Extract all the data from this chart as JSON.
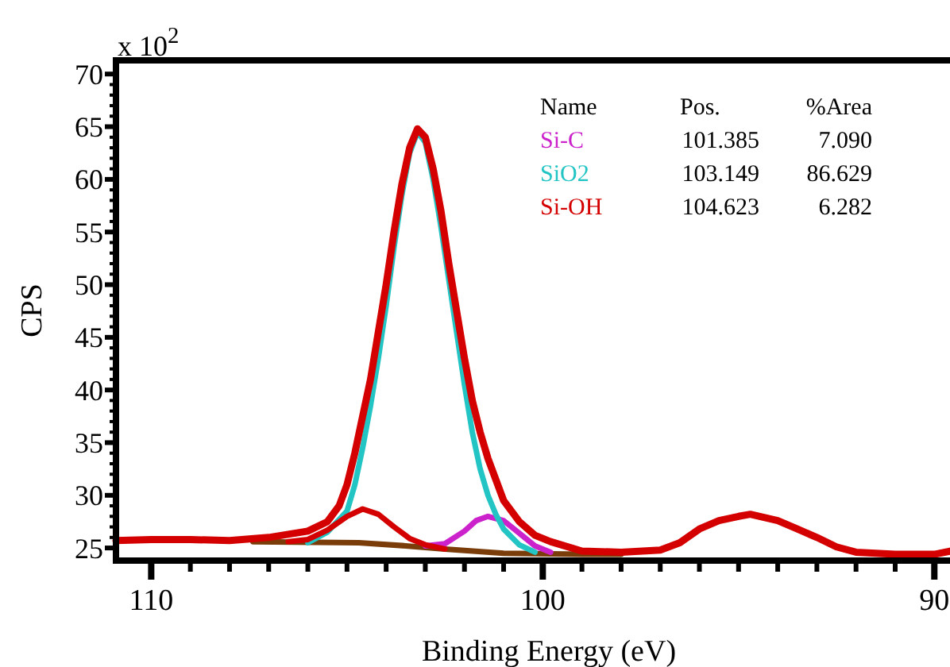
{
  "chart_data": {
    "type": "line",
    "xlabel": "Binding Energy (eV)",
    "ylabel": "CPS",
    "legend_title": "Name",
    "legend": "top right",
    "grid": false,
    "marker": "none",
    "line_style": "solid",
    "annotations": [
      "x 10$^{2}$",
      "Pos.",
      "%Area",
      "101.385",
      "7.090",
      "103.149",
      "86.629",
      "104.623",
      "6.282"
    ],
    "xlim": [
      110.9,
      89.6
    ],
    "ylim": [
      23.8,
      71.3
    ],
    "xticks": [
      {
        "value": 110,
        "label": "110"
      },
      {
        "value": 109,
        "label": null
      },
      {
        "value": 108,
        "label": null
      },
      {
        "value": 107,
        "label": null
      },
      {
        "value": 106,
        "label": null
      },
      {
        "value": 105,
        "label": null
      },
      {
        "value": 104,
        "label": null
      },
      {
        "value": 103,
        "label": null
      },
      {
        "value": 102,
        "label": null
      },
      {
        "value": 101,
        "label": null
      },
      {
        "value": 100,
        "label": "100"
      },
      {
        "value": 99,
        "label": null
      },
      {
        "value": 98,
        "label": null
      },
      {
        "value": 97,
        "label": null
      },
      {
        "value": 96,
        "label": null
      },
      {
        "value": 95,
        "label": null
      },
      {
        "value": 94,
        "label": null
      },
      {
        "value": 93,
        "label": null
      },
      {
        "value": 92,
        "label": null
      },
      {
        "value": 91,
        "label": null
      },
      {
        "value": 90,
        "label": "90"
      }
    ],
    "yticks": [
      25,
      {
        "value": 26,
        "label": null
      },
      {
        "value": 27,
        "label": null
      },
      {
        "value": 28,
        "label": null
      },
      {
        "value": 29,
        "label": null
      },
      30,
      {
        "value": 31,
        "label": null
      },
      {
        "value": 32,
        "label": null
      },
      {
        "value": 33,
        "label": null
      },
      {
        "value": 34,
        "label": null
      },
      35,
      {
        "value": 36,
        "label": null
      },
      {
        "value": 37,
        "label": null
      },
      {
        "value": 38,
        "label": null
      },
      {
        "value": 39,
        "label": null
      },
      40,
      {
        "value": 41,
        "label": null
      },
      {
        "value": 42,
        "label": null
      },
      {
        "value": 43,
        "label": null
      },
      {
        "value": 44,
        "label": null
      },
      45,
      {
        "value": 46,
        "label": null
      },
      {
        "value": 47,
        "label": null
      },
      {
        "value": 48,
        "label": null
      },
      {
        "value": 49,
        "label": null
      },
      50,
      {
        "value": 51,
        "label": null
      },
      {
        "value": 52,
        "label": null
      },
      {
        "value": 53,
        "label": null
      },
      {
        "value": 54,
        "label": null
      },
      55,
      {
        "value": 56,
        "label": null
      },
      {
        "value": 57,
        "label": null
      },
      {
        "value": 58,
        "label": null
      },
      {
        "value": 59,
        "label": null
      },
      60,
      {
        "value": 61,
        "label": null
      },
      {
        "value": 62,
        "label": null
      },
      {
        "value": 63,
        "label": null
      },
      {
        "value": 64,
        "label": null
      },
      65,
      {
        "value": 66,
        "label": null
      },
      {
        "value": 67,
        "label": null
      },
      {
        "value": 68,
        "label": null
      },
      {
        "value": 69,
        "label": null
      },
      70
    ],
    "series": [
      {
        "color": "#7a3d0a",
        "x": [
          107.4,
          104.7,
          103.5,
          102.5,
          101,
          99,
          98
        ],
        "values": [
          25.6,
          25.5,
          25.2,
          24.9,
          24.5,
          24.4,
          24.4
        ]
      },
      {
        "name": "Si-C",
        "color": "#cc22cc",
        "x": [
          103,
          102.5,
          102,
          101.7,
          101.4,
          101,
          100.6,
          100.2,
          99.8
        ],
        "values": [
          25.2,
          25.4,
          26.6,
          27.6,
          28.0,
          27.6,
          26.4,
          25.2,
          24.6
        ]
      },
      {
        "name": "SiO2",
        "color": "#22c4c4",
        "x": [
          106,
          105.5,
          105,
          104.8,
          104.6,
          104.4,
          104.2,
          104,
          103.8,
          103.6,
          103.4,
          103.2,
          103,
          102.8,
          102.6,
          102.4,
          102.2,
          102,
          101.8,
          101.6,
          101.4,
          101.2,
          101,
          100.6,
          100.2
        ],
        "values": [
          25.5,
          26.5,
          28.5,
          31,
          34.5,
          38.5,
          43,
          48,
          53.5,
          58.5,
          62.5,
          64.5,
          63.5,
          60,
          55.5,
          50.5,
          45.5,
          40.5,
          36,
          32.5,
          30,
          28.2,
          26.8,
          25.3,
          24.6
        ]
      },
      {
        "name": "Si-OH",
        "color": "#d40000",
        "x": [
          106.5,
          106,
          105.5,
          105,
          104.6,
          104.2,
          103.8,
          103.4,
          103,
          102.5
        ],
        "values": [
          25.6,
          25.8,
          26.7,
          28.0,
          28.7,
          28.2,
          27.0,
          25.9,
          25.3,
          24.9
        ]
      },
      {
        "color": "#d40000",
        "x": [
          110.9,
          110,
          109,
          108,
          107,
          106.5,
          106,
          105.5,
          105.2,
          105,
          104.8,
          104.6,
          104.4,
          104.2,
          104,
          103.8,
          103.6,
          103.4,
          103.2,
          103,
          102.8,
          102.6,
          102.4,
          102.2,
          102,
          101.8,
          101.6,
          101.4,
          101.2,
          101,
          100.6,
          100.2,
          99.8,
          99,
          98,
          97,
          96.5,
          96,
          95.5,
          95,
          94.7,
          94,
          93.5,
          93,
          92.5,
          92,
          91,
          90,
          89.6
        ],
        "values": [
          25.7,
          25.8,
          25.8,
          25.7,
          26.0,
          26.3,
          26.6,
          27.5,
          29,
          31,
          34,
          37.5,
          41,
          45.5,
          50,
          55,
          59.5,
          63,
          64.8,
          64,
          61,
          57,
          52,
          47.5,
          43,
          39,
          36,
          33.5,
          31.5,
          29.5,
          27.5,
          26.2,
          25.6,
          24.7,
          24.6,
          24.8,
          25.5,
          26.8,
          27.6,
          28.0,
          28.2,
          27.6,
          26.8,
          26.0,
          25.1,
          24.6,
          24.4,
          24.4,
          24.7
        ]
      }
    ]
  }
}
